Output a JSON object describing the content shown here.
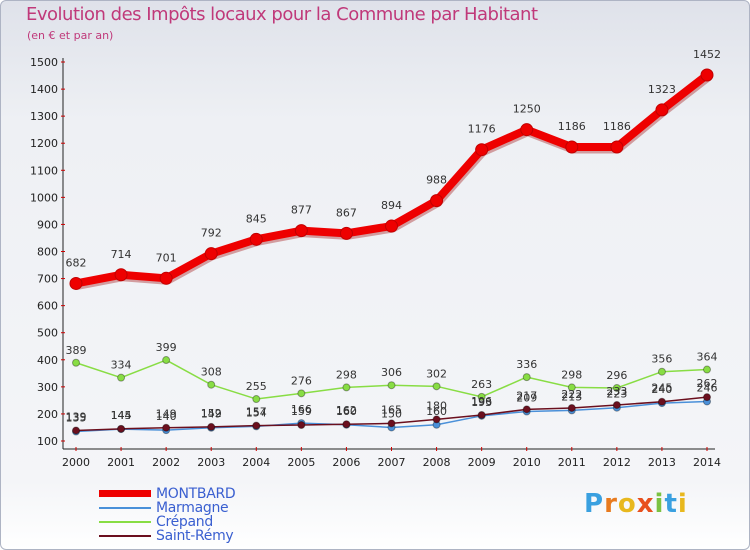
{
  "header": {
    "title": "Evolution des Impôts locaux pour la Commune par Habitant",
    "subtitle": "(en € et par an)"
  },
  "chart_data": {
    "type": "line",
    "title": "Evolution des Impôts locaux pour la Commune par Habitant",
    "subtitle": "(en € et par an)",
    "xlabel": "",
    "ylabel": "",
    "x": [
      "2000",
      "2001",
      "2002",
      "2003",
      "2004",
      "2005",
      "2006",
      "2007",
      "2008",
      "2009",
      "2010",
      "2011",
      "2012",
      "2013",
      "2014"
    ],
    "ylim": [
      100,
      1500
    ],
    "yticks": [
      100,
      200,
      300,
      400,
      500,
      600,
      700,
      800,
      900,
      1000,
      1100,
      1200,
      1300,
      1400,
      1500
    ],
    "grid": false,
    "legend": "bottom-left",
    "series": [
      {
        "name": "MONTBARD",
        "color": "#ee0000",
        "values": [
          682,
          714,
          701,
          792,
          845,
          877,
          867,
          894,
          988,
          1176,
          1250,
          1186,
          1186,
          1323,
          1452
        ]
      },
      {
        "name": "Marmagne",
        "color": "#4a90d9",
        "values": [
          135,
          144,
          140,
          149,
          154,
          166,
          160,
          150,
          160,
          193,
          209,
          213,
          223,
          240,
          246
        ]
      },
      {
        "name": "Crépand",
        "color": "#88dd44",
        "values": [
          389,
          334,
          399,
          308,
          255,
          276,
          298,
          306,
          302,
          263,
          336,
          298,
          296,
          356,
          364
        ]
      },
      {
        "name": "Saint-Rémy",
        "color": "#6b0f1e",
        "values": [
          139,
          145,
          149,
          152,
          157,
          159,
          162,
          165,
          180,
          196,
          217,
          222,
          233,
          245,
          262
        ]
      }
    ]
  },
  "legend": {
    "items": [
      {
        "label": "MONTBARD"
      },
      {
        "label": "Marmagne"
      },
      {
        "label": "Crépand"
      },
      {
        "label": "Saint-Rémy"
      }
    ]
  },
  "logo": {
    "letters": [
      {
        "char": "P",
        "color": "#3aa0e0"
      },
      {
        "char": "r",
        "color": "#e87a1e"
      },
      {
        "char": "o",
        "color": "#e8b81e"
      },
      {
        "char": "x",
        "color": "#e8501e"
      },
      {
        "char": "i",
        "color": "#7cc242"
      },
      {
        "char": "t",
        "color": "#3aa0e0"
      },
      {
        "char": "i",
        "color": "#e8b81e"
      }
    ]
  }
}
